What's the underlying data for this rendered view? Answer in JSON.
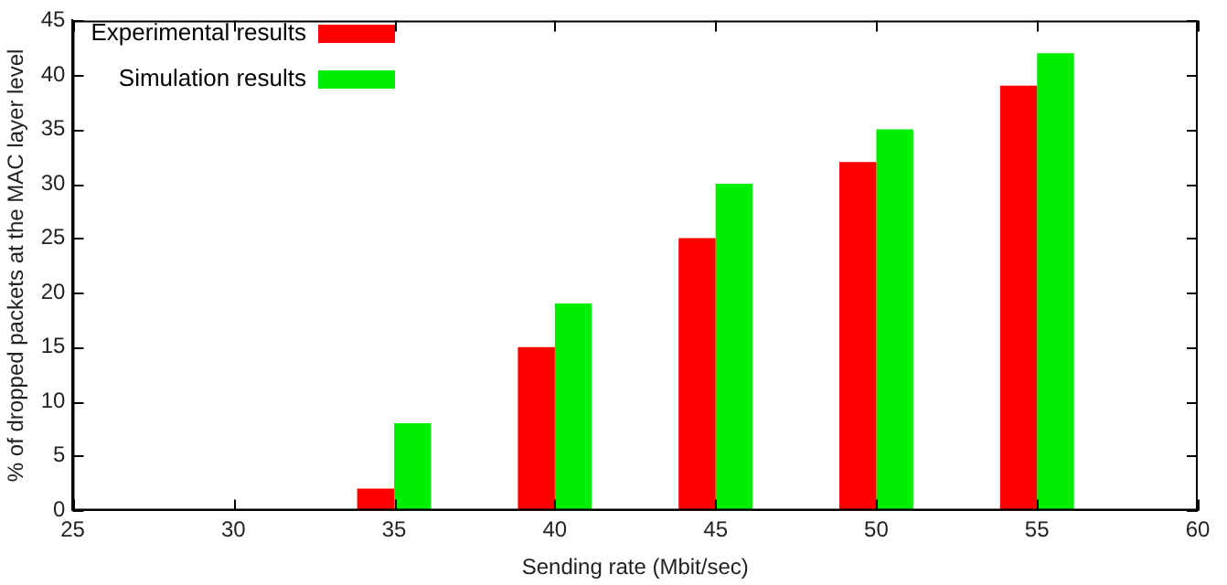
{
  "chart_data": {
    "type": "bar",
    "xlabel": "Sending rate (Mbit/sec)",
    "ylabel": "% of dropped packets at the MAC layer level",
    "x": [
      35,
      40,
      45,
      50,
      55
    ],
    "series": [
      {
        "name": "Experimental results",
        "color": "#ff0000",
        "values": [
          2,
          15,
          25,
          32,
          39
        ]
      },
      {
        "name": "Simulation results",
        "color": "#00ee00",
        "values": [
          8,
          19,
          30,
          35,
          42
        ]
      }
    ],
    "xlim": [
      25,
      60
    ],
    "xticks": [
      25,
      30,
      35,
      40,
      45,
      50,
      55,
      60
    ],
    "ylim": [
      0,
      45
    ],
    "yticks": [
      0,
      5,
      10,
      15,
      20,
      25,
      30,
      35,
      40,
      45
    ],
    "grid": false,
    "legend": "top left"
  }
}
